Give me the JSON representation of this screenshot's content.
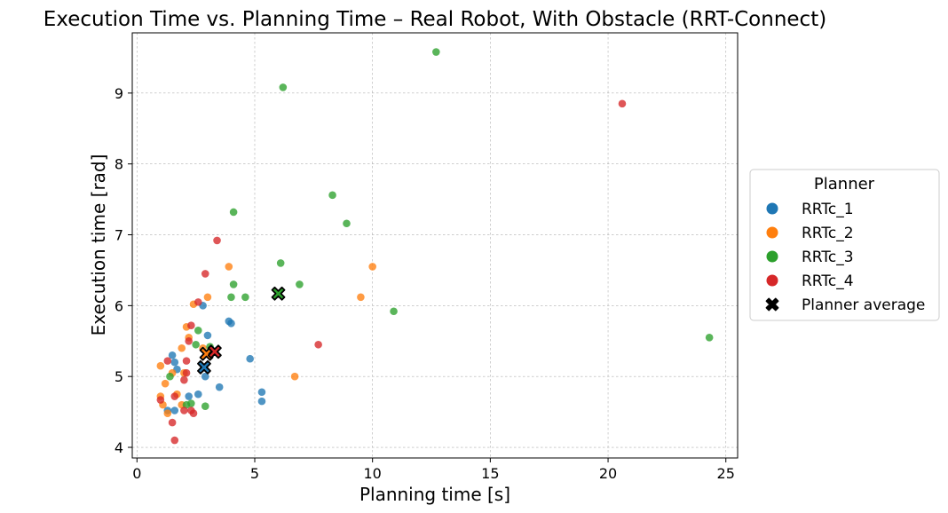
{
  "chart_data": {
    "type": "scatter",
    "title": "Execution Time vs. Planning Time – Real Robot, With Obstacle (RRT-Connect)",
    "xlabel": "Planning time [s]",
    "ylabel": "Execution time [rad]",
    "xlim": [
      -0.2,
      25.5
    ],
    "ylim": [
      3.85,
      9.85
    ],
    "xticks": [
      0,
      5,
      10,
      15,
      20,
      25
    ],
    "yticks": [
      4,
      5,
      6,
      7,
      8,
      9
    ],
    "xtick_labels": [
      "0",
      "5",
      "10",
      "15",
      "20",
      "25"
    ],
    "ytick_labels": [
      "4",
      "5",
      "6",
      "7",
      "8",
      "9"
    ],
    "grid": true,
    "legend": {
      "title": "Planner",
      "placement": "center-right-outside",
      "average_label": "Planner average"
    },
    "series": [
      {
        "name": "RRTc_1",
        "color": "#1f77b4",
        "points": [
          [
            1.3,
            4.52
          ],
          [
            1.5,
            5.3
          ],
          [
            1.6,
            5.2
          ],
          [
            1.7,
            5.1
          ],
          [
            1.6,
            4.52
          ],
          [
            2.2,
            4.72
          ],
          [
            2.6,
            4.75
          ],
          [
            2.8,
            6.0
          ],
          [
            2.9,
            5.0
          ],
          [
            3.0,
            5.58
          ],
          [
            3.5,
            4.85
          ],
          [
            3.9,
            5.78
          ],
          [
            4.0,
            5.75
          ],
          [
            4.8,
            5.25
          ],
          [
            5.3,
            4.78
          ],
          [
            5.3,
            4.65
          ]
        ],
        "average": [
          2.85,
          5.13
        ]
      },
      {
        "name": "RRTc_2",
        "color": "#ff7f0e",
        "points": [
          [
            1.0,
            5.15
          ],
          [
            1.0,
            4.72
          ],
          [
            1.1,
            4.6
          ],
          [
            1.2,
            4.9
          ],
          [
            1.3,
            4.48
          ],
          [
            1.5,
            5.05
          ],
          [
            1.7,
            4.75
          ],
          [
            1.9,
            5.4
          ],
          [
            2.0,
            5.05
          ],
          [
            2.1,
            5.7
          ],
          [
            2.2,
            5.55
          ],
          [
            2.4,
            6.02
          ],
          [
            2.8,
            5.4
          ],
          [
            3.0,
            6.12
          ],
          [
            3.9,
            6.55
          ],
          [
            6.7,
            5.0
          ],
          [
            9.5,
            6.12
          ],
          [
            10.0,
            6.55
          ],
          [
            1.9,
            4.6
          ]
        ],
        "average": [
          2.95,
          5.32
        ]
      },
      {
        "name": "RRTc_3",
        "color": "#2ca02c",
        "points": [
          [
            1.4,
            5.0
          ],
          [
            2.1,
            4.6
          ],
          [
            2.3,
            4.62
          ],
          [
            2.5,
            5.45
          ],
          [
            2.6,
            5.65
          ],
          [
            2.9,
            4.58
          ],
          [
            3.1,
            5.42
          ],
          [
            4.0,
            6.12
          ],
          [
            4.1,
            6.3
          ],
          [
            4.1,
            7.32
          ],
          [
            4.6,
            6.12
          ],
          [
            6.1,
            6.6
          ],
          [
            6.2,
            9.08
          ],
          [
            6.9,
            6.3
          ],
          [
            8.3,
            7.56
          ],
          [
            8.9,
            7.16
          ],
          [
            10.9,
            5.92
          ],
          [
            12.7,
            9.58
          ],
          [
            24.3,
            5.55
          ]
        ],
        "average": [
          6.0,
          6.17
        ]
      },
      {
        "name": "RRTc_4",
        "color": "#d62728",
        "points": [
          [
            1.0,
            4.67
          ],
          [
            1.3,
            5.22
          ],
          [
            1.5,
            4.35
          ],
          [
            1.6,
            4.72
          ],
          [
            1.6,
            4.1
          ],
          [
            2.0,
            4.95
          ],
          [
            2.1,
            5.22
          ],
          [
            2.1,
            5.05
          ],
          [
            2.2,
            5.5
          ],
          [
            2.3,
            5.72
          ],
          [
            2.0,
            4.52
          ],
          [
            2.3,
            4.52
          ],
          [
            2.4,
            4.48
          ],
          [
            2.6,
            6.05
          ],
          [
            2.9,
            6.45
          ],
          [
            3.4,
            6.92
          ],
          [
            7.7,
            5.45
          ],
          [
            20.6,
            8.85
          ]
        ],
        "average": [
          3.3,
          5.35
        ]
      }
    ]
  }
}
